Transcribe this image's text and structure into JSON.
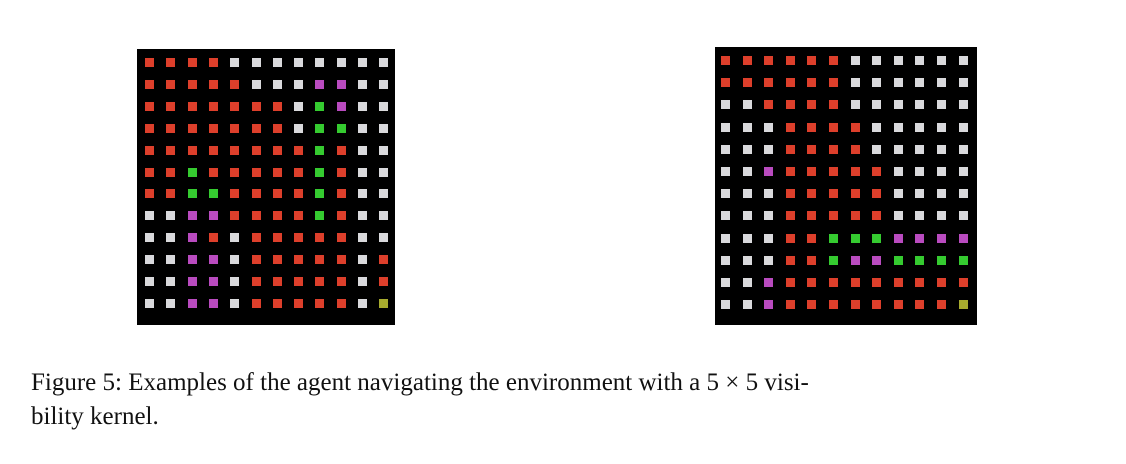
{
  "colors": {
    "R": "#dd3f2b",
    "W": "#d9d9dc",
    "G": "#35cb30",
    "P": "#b94bbf",
    "Y": "#a7ab2e",
    "background": "#000000"
  },
  "grids": [
    {
      "name": "left-grid",
      "rows": [
        "RRRRWWWWWWWW",
        "RRRRRWWWPPWW",
        "RRRRRRRWGPWW",
        "RRRRRRRWGGWW",
        "RRRRRRRRGRWW",
        "RRGRRRRRGRWW",
        "RRGGRRRRGRWW",
        "WWPPRRRRGRWW",
        "WWPRWRRRRRWW",
        "WWPPWRRRRRWR",
        "WWPPWRRRRRWR",
        "WWPPWRRRRRWY"
      ]
    },
    {
      "name": "right-grid",
      "rows": [
        "RRRRRRWWWWWW",
        "RRRRRRWWWWWW",
        "WWRRRRWWWWWW",
        "WWWRRRRWWWWW",
        "WWWRRRRWWWWW",
        "WWPRRRRRWWWW",
        "WWWRRRRRWWWW",
        "WWWRRRRRWWWW",
        "WWWRRGGGPPPP",
        "WWWRRGPPGGGG",
        "WWPRRRRRRRRR",
        "WWPRRRRRRRRY"
      ]
    }
  ],
  "caption": {
    "line1": "Figure 5: Examples of the agent navigating the environment with a 5 × 5 visi-",
    "line2": "bility kernel."
  }
}
